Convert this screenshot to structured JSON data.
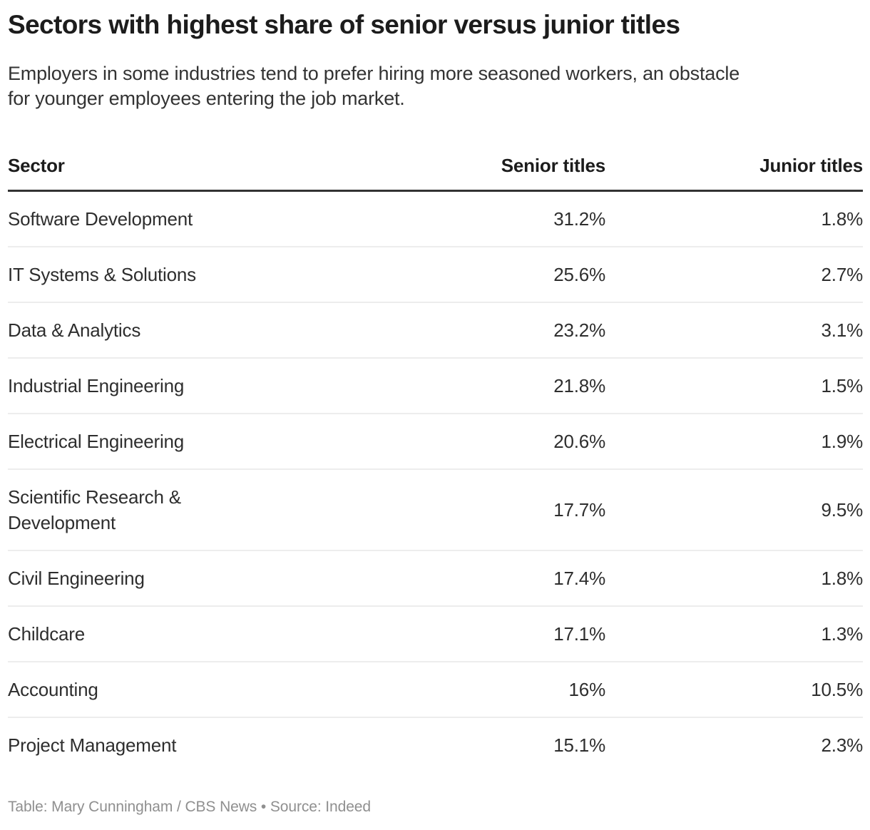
{
  "chart_data": {
    "type": "table",
    "title": "Sectors with highest share of senior versus junior titles",
    "subtitle": "Employers in some industries tend to prefer hiring more seasoned workers, an obstacle for younger employees entering the job market.",
    "columns": [
      "Sector",
      "Senior titles",
      "Junior titles"
    ],
    "rows": [
      {
        "sector": "Software Development",
        "senior": "31.2%",
        "junior": "1.8%"
      },
      {
        "sector": "IT Systems & Solutions",
        "senior": "25.6%",
        "junior": "2.7%"
      },
      {
        "sector": "Data & Analytics",
        "senior": "23.2%",
        "junior": "3.1%"
      },
      {
        "sector": "Industrial Engineering",
        "senior": "21.8%",
        "junior": "1.5%"
      },
      {
        "sector": "Electrical Engineering",
        "senior": "20.6%",
        "junior": "1.9%"
      },
      {
        "sector": "Scientific Research & Development",
        "senior": "17.7%",
        "junior": "9.5%"
      },
      {
        "sector": "Civil Engineering",
        "senior": "17.4%",
        "junior": "1.8%"
      },
      {
        "sector": "Childcare",
        "senior": "17.1%",
        "junior": "1.3%"
      },
      {
        "sector": "Accounting",
        "senior": "16%",
        "junior": "10.5%"
      },
      {
        "sector": "Project Management",
        "senior": "15.1%",
        "junior": "2.3%"
      }
    ],
    "senior_values_numeric": [
      31.2,
      25.6,
      23.2,
      21.8,
      20.6,
      17.7,
      17.4,
      17.1,
      16,
      15.1
    ],
    "junior_values_numeric": [
      1.8,
      2.7,
      3.1,
      1.5,
      1.9,
      9.5,
      1.8,
      1.3,
      10.5,
      2.3
    ],
    "credit": "Table: Mary Cunningham / CBS News • Source: Indeed"
  },
  "colors": {
    "background": "#ffffff",
    "title_text": "#1c1c1c",
    "body_text": "#2e2e2e",
    "header_rule": "#333333",
    "row_rule": "#ededed",
    "credit_text": "#8f8f8f"
  }
}
